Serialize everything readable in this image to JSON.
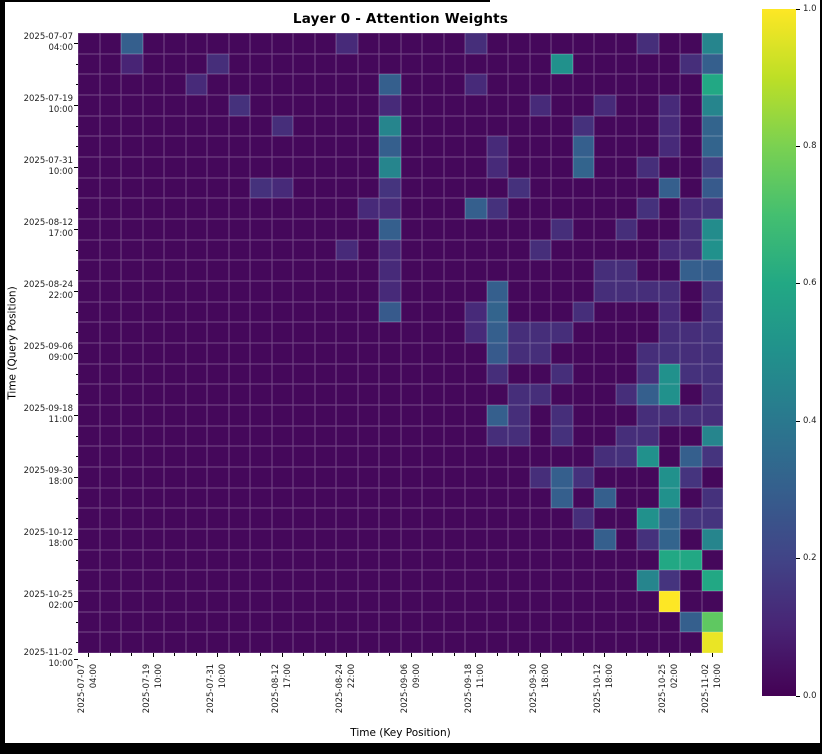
{
  "figure": {
    "title": "Layer 0 - Attention Weights",
    "xlabel": "Time (Key Position)",
    "ylabel": "Time (Query Position)"
  },
  "chart_data": {
    "type": "heatmap",
    "rows": 30,
    "cols": 30,
    "vmin": 0.0,
    "vmax": 1.0,
    "default_value": 0.02,
    "colormap": "viridis",
    "colormap_stops": [
      [
        0.0,
        "#440154"
      ],
      [
        0.1,
        "#482475"
      ],
      [
        0.2,
        "#414487"
      ],
      [
        0.3,
        "#355f8d"
      ],
      [
        0.4,
        "#2a788e"
      ],
      [
        0.5,
        "#21918c"
      ],
      [
        0.6,
        "#22a884"
      ],
      [
        0.7,
        "#44bf70"
      ],
      [
        0.8,
        "#7ad151"
      ],
      [
        0.9,
        "#bddf26"
      ],
      [
        1.0,
        "#fde725"
      ]
    ],
    "gridline_color": "rgba(235,232,242,0.30)",
    "tick_labels": [
      {
        "date": "2025-07-07",
        "time": "04:00"
      },
      {
        "date": "2025-07-19",
        "time": "10:00"
      },
      {
        "date": "2025-07-31",
        "time": "10:00"
      },
      {
        "date": "2025-08-12",
        "time": "17:00"
      },
      {
        "date": "2025-08-24",
        "time": "22:00"
      },
      {
        "date": "2025-09-06",
        "time": "09:00"
      },
      {
        "date": "2025-09-18",
        "time": "11:00"
      },
      {
        "date": "2025-09-30",
        "time": "18:00"
      },
      {
        "date": "2025-10-12",
        "time": "18:00"
      },
      {
        "date": "2025-10-25",
        "time": "02:00"
      },
      {
        "date": "2025-11-02",
        "time": "10:00"
      }
    ],
    "x_tick_positions": [
      0,
      3,
      6,
      9,
      12,
      15,
      18,
      21,
      24,
      27,
      29
    ],
    "y_tick_positions": [
      0,
      3,
      6,
      9,
      12,
      15,
      18,
      21,
      24,
      27,
      29.8
    ],
    "colorbar_ticks": [
      {
        "value": 1.0,
        "label": "1.0"
      },
      {
        "value": 0.8,
        "label": "0.8"
      },
      {
        "value": 0.6,
        "label": "0.6"
      },
      {
        "value": 0.4,
        "label": "0.4"
      },
      {
        "value": 0.2,
        "label": "0.2"
      },
      {
        "value": 0.0,
        "label": "0.0"
      }
    ],
    "cells": [
      [
        0,
        2,
        0.3
      ],
      [
        0,
        12,
        0.12
      ],
      [
        0,
        18,
        0.13
      ],
      [
        0,
        26,
        0.13
      ],
      [
        0,
        29,
        0.45
      ],
      [
        1,
        2,
        0.1
      ],
      [
        1,
        6,
        0.13
      ],
      [
        1,
        22,
        0.5
      ],
      [
        1,
        28,
        0.13
      ],
      [
        1,
        29,
        0.3
      ],
      [
        2,
        5,
        0.12
      ],
      [
        2,
        14,
        0.3
      ],
      [
        2,
        18,
        0.12
      ],
      [
        2,
        29,
        0.6
      ],
      [
        3,
        7,
        0.14
      ],
      [
        3,
        14,
        0.12
      ],
      [
        3,
        21,
        0.12
      ],
      [
        3,
        24,
        0.12
      ],
      [
        3,
        27,
        0.12
      ],
      [
        3,
        29,
        0.45
      ],
      [
        4,
        9,
        0.13
      ],
      [
        4,
        14,
        0.45
      ],
      [
        4,
        23,
        0.14
      ],
      [
        4,
        27,
        0.12
      ],
      [
        4,
        29,
        0.32
      ],
      [
        5,
        14,
        0.3
      ],
      [
        5,
        19,
        0.12
      ],
      [
        5,
        23,
        0.3
      ],
      [
        5,
        27,
        0.12
      ],
      [
        5,
        29,
        0.32
      ],
      [
        6,
        14,
        0.45
      ],
      [
        6,
        19,
        0.12
      ],
      [
        6,
        23,
        0.32
      ],
      [
        6,
        26,
        0.13
      ],
      [
        6,
        29,
        0.18
      ],
      [
        7,
        8,
        0.14
      ],
      [
        7,
        9,
        0.12
      ],
      [
        7,
        14,
        0.15
      ],
      [
        7,
        20,
        0.14
      ],
      [
        7,
        27,
        0.3
      ],
      [
        7,
        29,
        0.28
      ],
      [
        8,
        13,
        0.12
      ],
      [
        8,
        14,
        0.12
      ],
      [
        8,
        18,
        0.3
      ],
      [
        8,
        19,
        0.14
      ],
      [
        8,
        26,
        0.14
      ],
      [
        8,
        28,
        0.12
      ],
      [
        8,
        29,
        0.15
      ],
      [
        9,
        14,
        0.3
      ],
      [
        9,
        22,
        0.13
      ],
      [
        9,
        25,
        0.13
      ],
      [
        9,
        28,
        0.13
      ],
      [
        9,
        29,
        0.48
      ],
      [
        10,
        12,
        0.12
      ],
      [
        10,
        14,
        0.12
      ],
      [
        10,
        21,
        0.13
      ],
      [
        10,
        27,
        0.12
      ],
      [
        10,
        28,
        0.13
      ],
      [
        10,
        29,
        0.5
      ],
      [
        11,
        14,
        0.12
      ],
      [
        11,
        24,
        0.13
      ],
      [
        11,
        25,
        0.13
      ],
      [
        11,
        28,
        0.3
      ],
      [
        11,
        29,
        0.3
      ],
      [
        12,
        14,
        0.12
      ],
      [
        12,
        19,
        0.3
      ],
      [
        12,
        24,
        0.13
      ],
      [
        12,
        25,
        0.13
      ],
      [
        12,
        26,
        0.13
      ],
      [
        12,
        27,
        0.13
      ],
      [
        12,
        29,
        0.15
      ],
      [
        13,
        14,
        0.28
      ],
      [
        13,
        18,
        0.12
      ],
      [
        13,
        19,
        0.32
      ],
      [
        13,
        23,
        0.13
      ],
      [
        13,
        27,
        0.12
      ],
      [
        13,
        29,
        0.15
      ],
      [
        14,
        18,
        0.12
      ],
      [
        14,
        19,
        0.3
      ],
      [
        14,
        20,
        0.13
      ],
      [
        14,
        21,
        0.13
      ],
      [
        14,
        22,
        0.13
      ],
      [
        14,
        27,
        0.13
      ],
      [
        14,
        28,
        0.13
      ],
      [
        14,
        29,
        0.15
      ],
      [
        15,
        19,
        0.28
      ],
      [
        15,
        20,
        0.13
      ],
      [
        15,
        21,
        0.13
      ],
      [
        15,
        26,
        0.13
      ],
      [
        15,
        27,
        0.14
      ],
      [
        15,
        28,
        0.13
      ],
      [
        15,
        29,
        0.14
      ],
      [
        16,
        19,
        0.13
      ],
      [
        16,
        22,
        0.13
      ],
      [
        16,
        26,
        0.14
      ],
      [
        16,
        27,
        0.5
      ],
      [
        16,
        28,
        0.14
      ],
      [
        16,
        29,
        0.14
      ],
      [
        17,
        20,
        0.13
      ],
      [
        17,
        21,
        0.13
      ],
      [
        17,
        25,
        0.13
      ],
      [
        17,
        26,
        0.3
      ],
      [
        17,
        27,
        0.5
      ],
      [
        17,
        29,
        0.13
      ],
      [
        18,
        19,
        0.3
      ],
      [
        18,
        20,
        0.13
      ],
      [
        18,
        22,
        0.13
      ],
      [
        18,
        26,
        0.13
      ],
      [
        18,
        27,
        0.13
      ],
      [
        18,
        28,
        0.13
      ],
      [
        18,
        29,
        0.13
      ],
      [
        19,
        19,
        0.13
      ],
      [
        19,
        20,
        0.13
      ],
      [
        19,
        22,
        0.14
      ],
      [
        19,
        25,
        0.13
      ],
      [
        19,
        26,
        0.13
      ],
      [
        19,
        29,
        0.45
      ],
      [
        20,
        24,
        0.13
      ],
      [
        20,
        25,
        0.14
      ],
      [
        20,
        26,
        0.5
      ],
      [
        20,
        28,
        0.3
      ],
      [
        20,
        29,
        0.15
      ],
      [
        21,
        21,
        0.13
      ],
      [
        21,
        22,
        0.3
      ],
      [
        21,
        23,
        0.14
      ],
      [
        21,
        27,
        0.5
      ],
      [
        21,
        28,
        0.15
      ],
      [
        22,
        22,
        0.3
      ],
      [
        22,
        24,
        0.3
      ],
      [
        22,
        27,
        0.5
      ],
      [
        22,
        29,
        0.14
      ],
      [
        23,
        23,
        0.13
      ],
      [
        23,
        26,
        0.5
      ],
      [
        23,
        27,
        0.32
      ],
      [
        23,
        28,
        0.15
      ],
      [
        23,
        29,
        0.15
      ],
      [
        24,
        24,
        0.3
      ],
      [
        24,
        26,
        0.14
      ],
      [
        24,
        27,
        0.32
      ],
      [
        24,
        29,
        0.45
      ],
      [
        25,
        27,
        0.6
      ],
      [
        25,
        28,
        0.6
      ],
      [
        26,
        26,
        0.45
      ],
      [
        26,
        27,
        0.15
      ],
      [
        26,
        29,
        0.6
      ],
      [
        27,
        27,
        1.0
      ],
      [
        28,
        28,
        0.3
      ],
      [
        28,
        29,
        0.75
      ],
      [
        29,
        29,
        0.97
      ]
    ]
  }
}
